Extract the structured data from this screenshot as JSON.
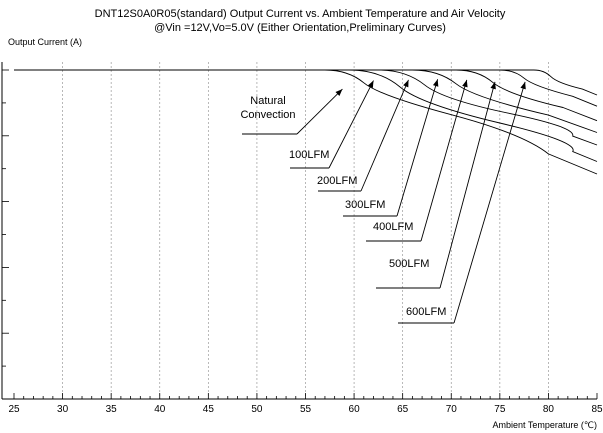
{
  "chart_data": {
    "type": "line",
    "title": "DNT12S0A0R05(standard)  Output Current vs. Ambient Temperature and Air Velocity",
    "subtitle": "@Vin =12V,Vo=5.0V  (Either Orientation,Preliminary Curves)",
    "ylabel": "Output Current (A)",
    "xlabel": "Ambient Temperature (℃)",
    "xlim": [
      25,
      85
    ],
    "ylim": [
      0,
      5
    ],
    "x_ticks": [
      "25",
      "30",
      "35",
      "40",
      "45",
      "50",
      "55",
      "60",
      "65",
      "70",
      "75",
      "80",
      "85"
    ],
    "y_ticks": [
      "0",
      "1",
      "2",
      "3",
      "4",
      "5"
    ],
    "grid": "vertical dashed",
    "series": [
      {
        "name": "Natural Convection",
        "x": [
          25,
          57,
          65,
          75,
          85
        ],
        "y": [
          5,
          5,
          4.61,
          4.03,
          3.42
        ]
      },
      {
        "name": "100LFM",
        "x": [
          25,
          59.5,
          70,
          80,
          85
        ],
        "y": [
          5,
          5,
          4.48,
          3.91,
          3.61
        ]
      },
      {
        "name": "200LFM",
        "x": [
          25,
          62.5,
          72,
          80,
          85
        ],
        "y": [
          5,
          5,
          4.55,
          4.13,
          3.86
        ]
      },
      {
        "name": "300LFM",
        "x": [
          25,
          66,
          75,
          85
        ],
        "y": [
          5,
          5,
          4.58,
          4.05
        ]
      },
      {
        "name": "400LFM",
        "x": [
          25,
          70.5,
          78,
          85
        ],
        "y": [
          5,
          5,
          4.63,
          4.23
        ]
      },
      {
        "name": "500LFM",
        "x": [
          25,
          75,
          80,
          85
        ],
        "y": [
          5,
          5,
          4.75,
          4.45
        ]
      },
      {
        "name": "600LFM",
        "x": [
          25,
          78.5,
          82,
          85
        ],
        "y": [
          5,
          5,
          4.8,
          4.62
        ]
      }
    ],
    "annotations": [
      {
        "text": "Natural",
        "text2": "Convection",
        "series": 0,
        "arrow_to": [
          58.8,
          4.71
        ]
      },
      {
        "text": "100LFM",
        "series": 1,
        "arrow_to": [
          62,
          4.84
        ]
      },
      {
        "text": "200LFM",
        "series": 2,
        "arrow_to": [
          65.6,
          4.85
        ]
      },
      {
        "text": "300LFM",
        "series": 3,
        "arrow_to": [
          68.6,
          4.86
        ]
      },
      {
        "text": "400LFM",
        "series": 4,
        "arrow_to": [
          71.6,
          4.85
        ]
      },
      {
        "text": "500LFM",
        "series": 5,
        "arrow_to": [
          74.5,
          4.82
        ]
      },
      {
        "text": "600LFM",
        "series": 6,
        "arrow_to": [
          77.6,
          4.82
        ]
      }
    ],
    "line_color": "#000000"
  }
}
